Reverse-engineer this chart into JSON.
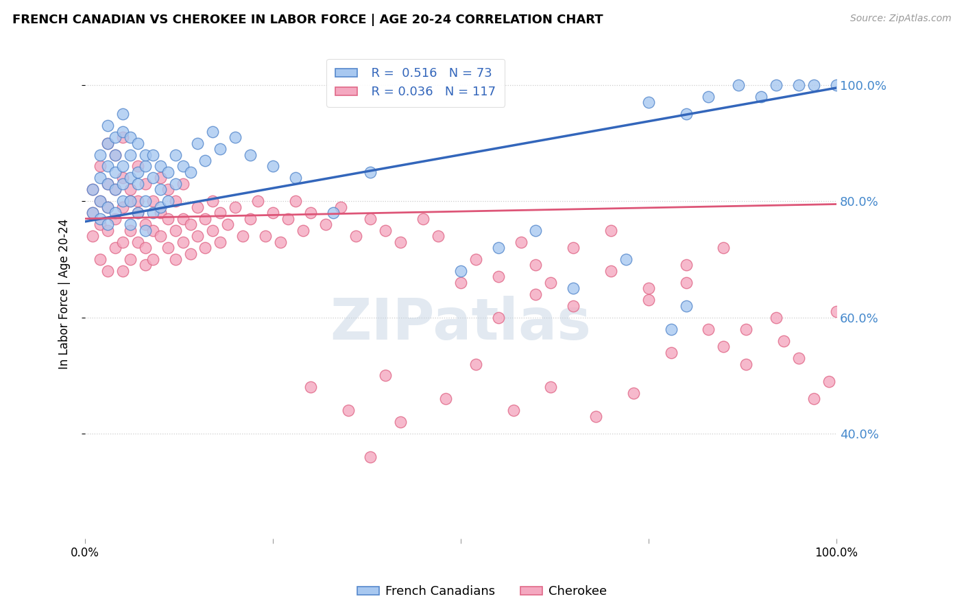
{
  "title": "FRENCH CANADIAN VS CHEROKEE IN LABOR FORCE | AGE 20-24 CORRELATION CHART",
  "source": "Source: ZipAtlas.com",
  "ylabel": "In Labor Force | Age 20-24",
  "xmin": 0.0,
  "xmax": 1.0,
  "ymin": 0.22,
  "ymax": 1.06,
  "yticks": [
    0.4,
    0.6,
    0.8,
    1.0
  ],
  "ytick_labels": [
    "40.0%",
    "60.0%",
    "80.0%",
    "100.0%"
  ],
  "blue_R": 0.516,
  "blue_N": 73,
  "pink_R": 0.036,
  "pink_N": 117,
  "blue_color": "#A8C8F0",
  "pink_color": "#F4A8C0",
  "blue_edge_color": "#5588CC",
  "pink_edge_color": "#E06888",
  "blue_line_color": "#3366BB",
  "pink_line_color": "#DD5577",
  "watermark": "ZIPatlas",
  "watermark_color": "#C0D0E0",
  "legend_label_blue": "French Canadians",
  "legend_label_pink": "Cherokee",
  "blue_trend_x0": 0.0,
  "blue_trend_y0": 0.765,
  "blue_trend_x1": 1.0,
  "blue_trend_y1": 0.995,
  "pink_trend_x0": 0.0,
  "pink_trend_y0": 0.77,
  "pink_trend_x1": 1.0,
  "pink_trend_y1": 0.795,
  "blue_scatter_x": [
    0.01,
    0.01,
    0.02,
    0.02,
    0.02,
    0.02,
    0.03,
    0.03,
    0.03,
    0.03,
    0.03,
    0.03,
    0.04,
    0.04,
    0.04,
    0.04,
    0.04,
    0.05,
    0.05,
    0.05,
    0.05,
    0.05,
    0.06,
    0.06,
    0.06,
    0.06,
    0.06,
    0.07,
    0.07,
    0.07,
    0.07,
    0.08,
    0.08,
    0.08,
    0.08,
    0.09,
    0.09,
    0.09,
    0.1,
    0.1,
    0.1,
    0.11,
    0.11,
    0.12,
    0.12,
    0.13,
    0.14,
    0.15,
    0.16,
    0.17,
    0.18,
    0.2,
    0.22,
    0.25,
    0.28,
    0.33,
    0.38,
    0.5,
    0.55,
    0.6,
    0.65,
    0.72,
    0.78,
    0.8,
    0.83,
    0.87,
    0.9,
    0.92,
    0.95,
    0.97,
    1.0,
    0.75,
    0.8
  ],
  "blue_scatter_y": [
    0.78,
    0.82,
    0.8,
    0.84,
    0.77,
    0.88,
    0.83,
    0.79,
    0.86,
    0.9,
    0.76,
    0.93,
    0.82,
    0.85,
    0.78,
    0.91,
    0.88,
    0.86,
    0.8,
    0.83,
    0.92,
    0.95,
    0.84,
    0.88,
    0.8,
    0.76,
    0.91,
    0.85,
    0.78,
    0.83,
    0.9,
    0.86,
    0.8,
    0.88,
    0.75,
    0.84,
    0.88,
    0.78,
    0.86,
    0.82,
    0.79,
    0.85,
    0.8,
    0.88,
    0.83,
    0.86,
    0.85,
    0.9,
    0.87,
    0.92,
    0.89,
    0.91,
    0.88,
    0.86,
    0.84,
    0.78,
    0.85,
    0.68,
    0.72,
    0.75,
    0.65,
    0.7,
    0.58,
    0.62,
    0.98,
    1.0,
    0.98,
    1.0,
    1.0,
    1.0,
    1.0,
    0.97,
    0.95
  ],
  "pink_scatter_x": [
    0.01,
    0.01,
    0.01,
    0.02,
    0.02,
    0.02,
    0.02,
    0.03,
    0.03,
    0.03,
    0.03,
    0.03,
    0.04,
    0.04,
    0.04,
    0.04,
    0.05,
    0.05,
    0.05,
    0.05,
    0.05,
    0.06,
    0.06,
    0.06,
    0.06,
    0.07,
    0.07,
    0.07,
    0.07,
    0.08,
    0.08,
    0.08,
    0.08,
    0.09,
    0.09,
    0.09,
    0.1,
    0.1,
    0.1,
    0.11,
    0.11,
    0.11,
    0.12,
    0.12,
    0.12,
    0.13,
    0.13,
    0.13,
    0.14,
    0.14,
    0.15,
    0.15,
    0.16,
    0.16,
    0.17,
    0.17,
    0.18,
    0.18,
    0.19,
    0.2,
    0.21,
    0.22,
    0.23,
    0.24,
    0.25,
    0.26,
    0.27,
    0.28,
    0.29,
    0.3,
    0.32,
    0.34,
    0.36,
    0.38,
    0.4,
    0.42,
    0.45,
    0.47,
    0.5,
    0.52,
    0.55,
    0.58,
    0.6,
    0.62,
    0.65,
    0.7,
    0.75,
    0.8,
    0.85,
    0.88,
    0.92,
    0.95,
    0.97,
    0.99,
    1.0,
    0.3,
    0.35,
    0.4,
    0.38,
    0.42,
    0.48,
    0.52,
    0.57,
    0.62,
    0.68,
    0.73,
    0.78,
    0.83,
    0.88,
    0.93,
    0.55,
    0.6,
    0.65,
    0.7,
    0.75,
    0.8,
    0.85
  ],
  "pink_scatter_y": [
    0.78,
    0.82,
    0.74,
    0.8,
    0.7,
    0.86,
    0.76,
    0.83,
    0.75,
    0.79,
    0.68,
    0.9,
    0.77,
    0.82,
    0.72,
    0.88,
    0.84,
    0.79,
    0.73,
    0.68,
    0.91,
    0.8,
    0.75,
    0.82,
    0.7,
    0.78,
    0.73,
    0.86,
    0.8,
    0.76,
    0.72,
    0.83,
    0.69,
    0.8,
    0.75,
    0.7,
    0.78,
    0.74,
    0.84,
    0.77,
    0.72,
    0.82,
    0.75,
    0.8,
    0.7,
    0.77,
    0.73,
    0.83,
    0.76,
    0.71,
    0.79,
    0.74,
    0.77,
    0.72,
    0.8,
    0.75,
    0.78,
    0.73,
    0.76,
    0.79,
    0.74,
    0.77,
    0.8,
    0.74,
    0.78,
    0.73,
    0.77,
    0.8,
    0.75,
    0.78,
    0.76,
    0.79,
    0.74,
    0.77,
    0.75,
    0.73,
    0.77,
    0.74,
    0.66,
    0.7,
    0.67,
    0.73,
    0.69,
    0.66,
    0.72,
    0.75,
    0.63,
    0.66,
    0.55,
    0.58,
    0.6,
    0.53,
    0.46,
    0.49,
    0.61,
    0.48,
    0.44,
    0.5,
    0.36,
    0.42,
    0.46,
    0.52,
    0.44,
    0.48,
    0.43,
    0.47,
    0.54,
    0.58,
    0.52,
    0.56,
    0.6,
    0.64,
    0.62,
    0.68,
    0.65,
    0.69,
    0.72
  ]
}
